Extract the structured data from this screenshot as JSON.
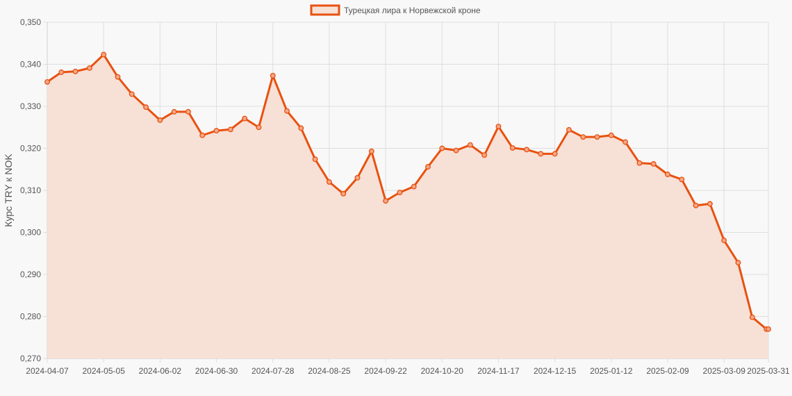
{
  "chart_data": {
    "type": "area",
    "legend": "Турецкая лира к Норвежской кроне",
    "legend_position": "top-center",
    "ylabel": "Курс TRY к NOK",
    "xlabel": "",
    "ylim": [
      0.27,
      0.35
    ],
    "y_ticks": [
      "0,270",
      "0,280",
      "0,290",
      "0,300",
      "0,310",
      "0,320",
      "0,330",
      "0,340",
      "0,350"
    ],
    "x_ticks": [
      "2024-04-07",
      "2024-05-05",
      "2024-06-02",
      "2024-06-30",
      "2024-07-28",
      "2024-08-25",
      "2024-09-22",
      "2024-10-20",
      "2024-11-17",
      "2024-12-15",
      "2025-01-12",
      "2025-02-09",
      "2025-03-09",
      "2025-03-31"
    ],
    "grid": true,
    "colors": {
      "line": "#e8510f",
      "fill": "#f7e0d6",
      "background": "#f8f8f8"
    },
    "series": [
      {
        "name": "Турецкая лира к Норвежской кроне",
        "x": [
          "2024-04-07",
          "2024-04-14",
          "2024-04-21",
          "2024-04-28",
          "2024-05-05",
          "2024-05-12",
          "2024-05-19",
          "2024-05-26",
          "2024-06-02",
          "2024-06-09",
          "2024-06-16",
          "2024-06-23",
          "2024-06-30",
          "2024-07-07",
          "2024-07-14",
          "2024-07-21",
          "2024-07-28",
          "2024-08-04",
          "2024-08-11",
          "2024-08-18",
          "2024-08-25",
          "2024-09-01",
          "2024-09-08",
          "2024-09-15",
          "2024-09-22",
          "2024-09-29",
          "2024-10-06",
          "2024-10-13",
          "2024-10-20",
          "2024-10-27",
          "2024-11-03",
          "2024-11-10",
          "2024-11-17",
          "2024-11-24",
          "2024-12-01",
          "2024-12-08",
          "2024-12-15",
          "2024-12-22",
          "2024-12-29",
          "2025-01-05",
          "2025-01-12",
          "2025-01-19",
          "2025-01-26",
          "2025-02-02",
          "2025-02-09",
          "2025-02-16",
          "2025-02-23",
          "2025-03-02",
          "2025-03-09",
          "2025-03-16",
          "2025-03-23",
          "2025-03-30",
          "2025-03-31"
        ],
        "values": [
          0.3358,
          0.3381,
          0.3383,
          0.3391,
          0.3423,
          0.337,
          0.3329,
          0.3298,
          0.3267,
          0.3287,
          0.3287,
          0.3231,
          0.3242,
          0.3245,
          0.3271,
          0.325,
          0.3373,
          0.3289,
          0.3248,
          0.3174,
          0.312,
          0.3092,
          0.313,
          0.3193,
          0.3075,
          0.3095,
          0.3109,
          0.3156,
          0.32,
          0.3195,
          0.3208,
          0.3184,
          0.3252,
          0.3201,
          0.3197,
          0.3187,
          0.3187,
          0.3244,
          0.3227,
          0.3227,
          0.3231,
          0.3215,
          0.3165,
          0.3163,
          0.3138,
          0.3126,
          0.3064,
          0.3068,
          0.2981,
          0.2928,
          0.2798,
          0.277,
          0.277
        ]
      }
    ]
  }
}
